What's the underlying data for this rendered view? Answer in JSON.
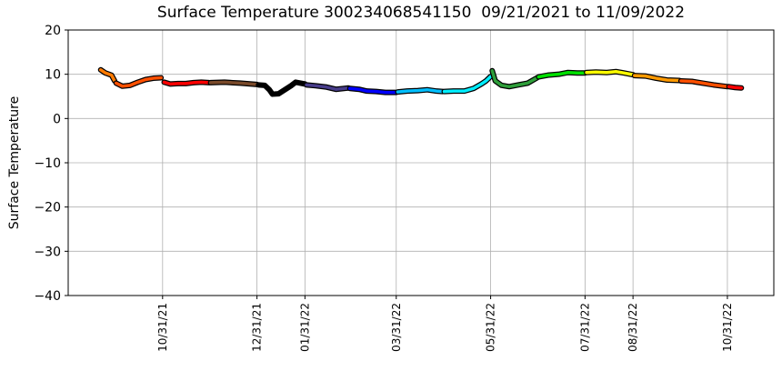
{
  "chart_data": {
    "type": "line",
    "title": "Surface Temperature 300234068541150  09/21/2021 to 11/09/2022",
    "y_label": "Surface Temperature",
    "xlim": [
      "2021-08-31",
      "2022-11-30"
    ],
    "xticks": [
      {
        "value": "2021-10-31",
        "label": "10/31/21"
      },
      {
        "value": "2021-12-31",
        "label": "12/31/21"
      },
      {
        "value": "2022-01-31",
        "label": "01/31/22"
      },
      {
        "value": "2022-03-31",
        "label": "03/31/22"
      },
      {
        "value": "2022-05-31",
        "label": "05/31/22"
      },
      {
        "value": "2022-07-31",
        "label": "07/31/22"
      },
      {
        "value": "2022-08-31",
        "label": "08/31/22"
      },
      {
        "value": "2022-10-31",
        "label": "10/31/22"
      }
    ],
    "ylim": [
      -40,
      20
    ],
    "yticks": [
      {
        "value": -40,
        "label": "−40"
      },
      {
        "value": -30,
        "label": "−30"
      },
      {
        "value": -20,
        "label": "−20"
      },
      {
        "value": -10,
        "label": "−10"
      },
      0,
      10,
      20
    ],
    "grid": true,
    "outline_color": "#000000",
    "series": [
      {
        "color": "#ff7a00",
        "x": [
          "2021-09-21",
          "2021-09-24",
          "2021-09-28",
          "2021-09-30"
        ],
        "values": [
          11,
          10.3,
          9.8,
          8.5
        ]
      },
      {
        "color": "#ff5000",
        "x": [
          "2021-10-01",
          "2021-10-05",
          "2021-10-10",
          "2021-10-15",
          "2021-10-20",
          "2021-10-25",
          "2021-10-30"
        ],
        "values": [
          8,
          7.3,
          7.5,
          8.2,
          8.8,
          9.1,
          9.2
        ]
      },
      {
        "color": "#ff0000",
        "x": [
          "2021-11-01",
          "2021-11-05",
          "2021-11-10",
          "2021-11-15",
          "2021-11-20",
          "2021-11-25",
          "2021-11-30"
        ],
        "values": [
          8.2,
          7.8,
          7.9,
          7.9,
          8.1,
          8.2,
          8.1
        ]
      },
      {
        "color": "#7a4a2a",
        "x": [
          "2021-12-01",
          "2021-12-10",
          "2021-12-20",
          "2021-12-31"
        ],
        "values": [
          8.1,
          8.2,
          8.0,
          7.7
        ]
      },
      {
        "color": "#000000",
        "x": [
          "2022-01-01",
          "2022-01-05",
          "2022-01-08",
          "2022-01-10",
          "2022-01-14",
          "2022-01-18",
          "2022-01-22",
          "2022-01-25",
          "2022-01-31"
        ],
        "values": [
          7.6,
          7.5,
          6.5,
          5.5,
          5.6,
          6.5,
          7.4,
          8.2,
          7.8
        ]
      },
      {
        "color": "#483d8b",
        "x": [
          "2022-02-01",
          "2022-02-07",
          "2022-02-14",
          "2022-02-20",
          "2022-02-28"
        ],
        "values": [
          7.6,
          7.4,
          7.1,
          6.6,
          6.9
        ]
      },
      {
        "color": "#0000ff",
        "x": [
          "2022-03-01",
          "2022-03-07",
          "2022-03-12",
          "2022-03-18",
          "2022-03-24",
          "2022-03-31"
        ],
        "values": [
          6.8,
          6.6,
          6.2,
          6.1,
          5.9,
          5.9
        ]
      },
      {
        "color": "#00bfff",
        "x": [
          "2022-04-01",
          "2022-04-07",
          "2022-04-14",
          "2022-04-20",
          "2022-04-26",
          "2022-04-30"
        ],
        "values": [
          6.0,
          6.2,
          6.3,
          6.5,
          6.2,
          6.1
        ]
      },
      {
        "color": "#00eeff",
        "x": [
          "2022-05-01",
          "2022-05-07",
          "2022-05-14",
          "2022-05-20",
          "2022-05-25",
          "2022-05-28",
          "2022-05-31"
        ],
        "values": [
          6.1,
          6.2,
          6.2,
          6.8,
          7.8,
          8.5,
          9.5
        ]
      },
      {
        "color": "#2e9e3a",
        "x": [
          "2022-06-01",
          "2022-06-03",
          "2022-06-07",
          "2022-06-12",
          "2022-06-18",
          "2022-06-24",
          "2022-06-30"
        ],
        "values": [
          10.8,
          8.5,
          7.5,
          7.2,
          7.6,
          8.0,
          9.2
        ]
      },
      {
        "color": "#00e000",
        "x": [
          "2022-07-01",
          "2022-07-07",
          "2022-07-14",
          "2022-07-20",
          "2022-07-26",
          "2022-07-31"
        ],
        "values": [
          9.4,
          9.8,
          10.0,
          10.4,
          10.3,
          10.3
        ]
      },
      {
        "color": "#ffff00",
        "x": [
          "2022-08-01",
          "2022-08-07",
          "2022-08-14",
          "2022-08-20",
          "2022-08-25",
          "2022-08-31"
        ],
        "values": [
          10.4,
          10.5,
          10.4,
          10.6,
          10.3,
          9.9
        ]
      },
      {
        "color": "#ff9a00",
        "x": [
          "2022-09-01",
          "2022-09-08",
          "2022-09-15",
          "2022-09-22",
          "2022-09-30"
        ],
        "values": [
          9.7,
          9.6,
          9.1,
          8.7,
          8.6
        ]
      },
      {
        "color": "#ff5000",
        "x": [
          "2022-10-01",
          "2022-10-08",
          "2022-10-15",
          "2022-10-22",
          "2022-10-31"
        ],
        "values": [
          8.5,
          8.4,
          8.0,
          7.6,
          7.2
        ]
      },
      {
        "color": "#ff0000",
        "x": [
          "2022-11-01",
          "2022-11-05",
          "2022-11-09"
        ],
        "values": [
          7.2,
          7.0,
          6.9
        ]
      }
    ]
  }
}
